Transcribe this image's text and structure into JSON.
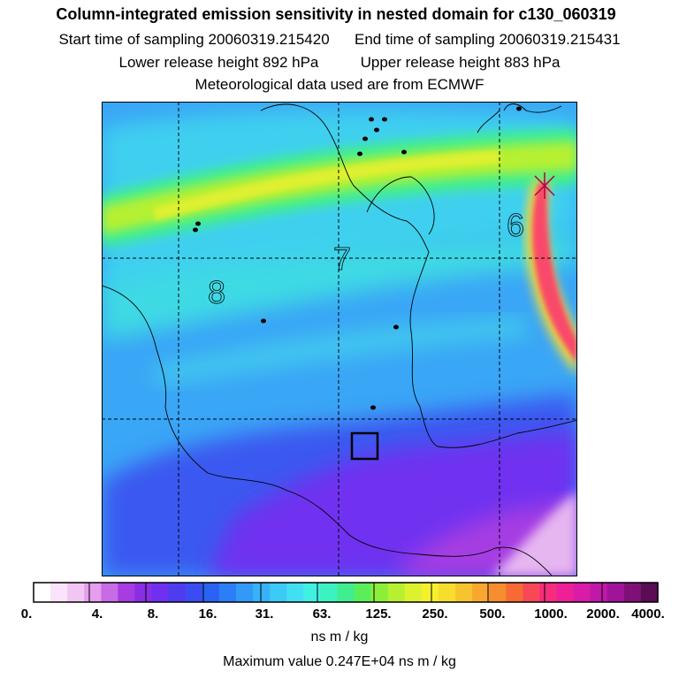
{
  "header": {
    "title": "Column-integrated emission sensitivity in nested domain for c130_060319",
    "start_label": "Start time of sampling 20060319.215420",
    "end_label": "End time of sampling 20060319.215431",
    "lower_label": "Lower release height  892 hPa",
    "upper_label": "Upper release height  883 hPa",
    "met_label": "Meteorological data used are from ECMWF"
  },
  "map": {
    "contour_labels": [
      "8",
      "7",
      "6"
    ],
    "city_markers": 13,
    "release_box": "receptor",
    "peak_marker": "max"
  },
  "colorbar": {
    "tick_labels": [
      "0.",
      "4.",
      "8.",
      "16.",
      "31.",
      "63.",
      "125.",
      "250.",
      "500.",
      "1000.",
      "2000.",
      "4000."
    ],
    "colors": [
      "#ffffff",
      "#fbe3fb",
      "#f2c6f3",
      "#e69eee",
      "#c86be6",
      "#a63ce2",
      "#8a2ee6",
      "#6f30f0",
      "#4f3cf0",
      "#3a4cf2",
      "#2a62f4",
      "#2c7ef6",
      "#3399f8",
      "#37b2f8",
      "#3ccaf6",
      "#40e0f2",
      "#40f0e0",
      "#3cf2c0",
      "#40ee90",
      "#5aee5a",
      "#8aee3a",
      "#b6f030",
      "#dcf22e",
      "#f4f02e",
      "#f8dc2e",
      "#f8c42e",
      "#f8a82e",
      "#f88c30",
      "#f86a34",
      "#f84858",
      "#f82c7c",
      "#ee2098",
      "#d81ca8",
      "#c018a8",
      "#a0149a",
      "#801078",
      "#5a0c54"
    ],
    "units": "ns m / kg",
    "max_value": "Maximum value  0.247E+04 ns m / kg"
  }
}
